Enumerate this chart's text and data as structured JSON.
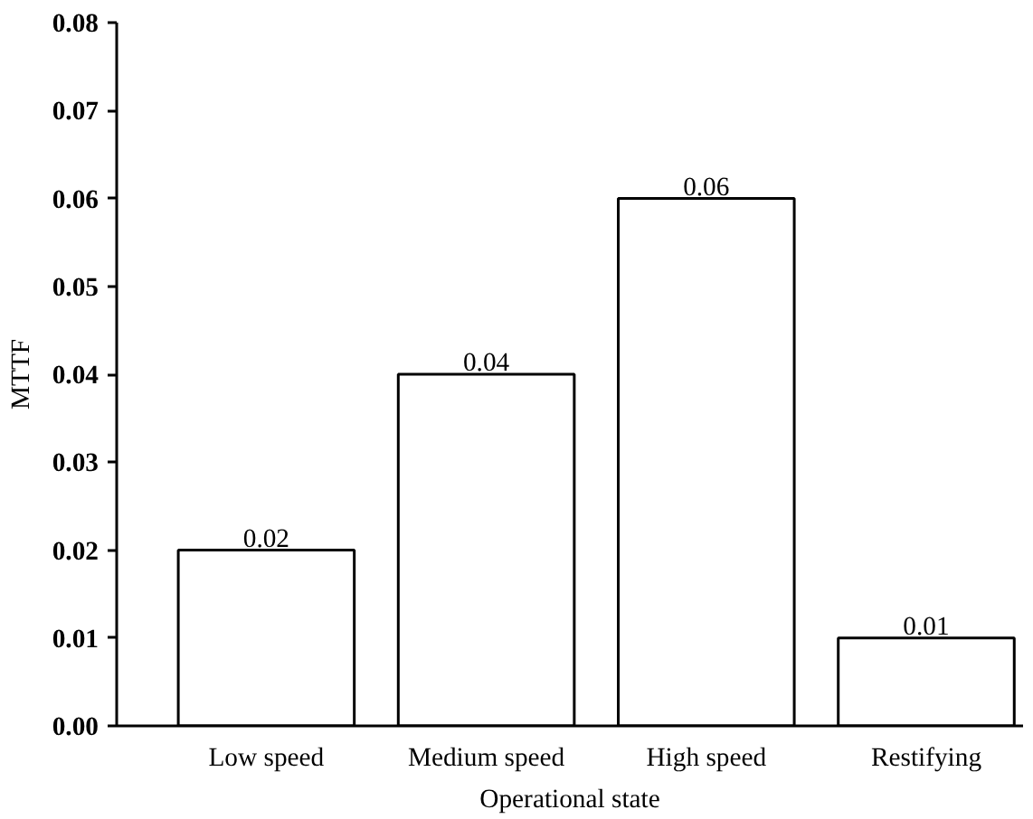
{
  "chart_data": {
    "type": "bar",
    "xlabel": "Operational state",
    "ylabel": "MTTF",
    "categories": [
      "Low speed",
      "Medium speed",
      "High speed",
      "Restifying"
    ],
    "values": [
      0.02,
      0.04,
      0.06,
      0.01
    ],
    "color": "#ffffff",
    "ylim": [
      0,
      0.08
    ],
    "yticks": [
      {
        "value": 0,
        "label": "0.00"
      },
      {
        "value": 0.01,
        "label": "0.01"
      },
      {
        "value": 0.02,
        "label": "0.02"
      },
      {
        "value": 0.03,
        "label": "0.03"
      },
      {
        "value": 0.04,
        "label": "0.04"
      },
      {
        "value": 0.05,
        "label": "0.05"
      },
      {
        "value": 0.06,
        "label": "0.06"
      },
      {
        "value": 0.07,
        "label": "0.07"
      },
      {
        "value": 0.08,
        "label": "0.08"
      }
    ],
    "data_labels": true
  }
}
